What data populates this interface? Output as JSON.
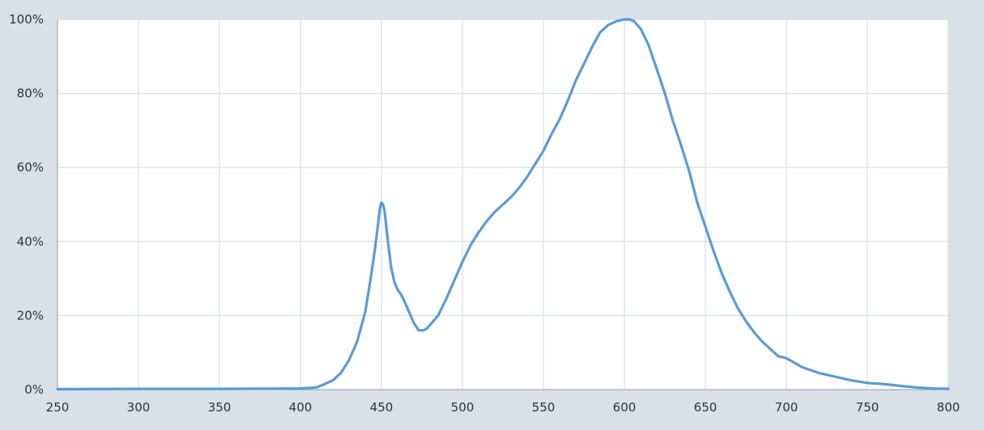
{
  "chart_data": {
    "type": "line",
    "title": "",
    "xlabel": "",
    "ylabel": "",
    "xlim": [
      250,
      800
    ],
    "ylim": [
      0,
      100
    ],
    "x_ticks": [
      250,
      300,
      350,
      400,
      450,
      500,
      550,
      600,
      650,
      700,
      750,
      800
    ],
    "x_tick_labels": [
      "250",
      "300",
      "350",
      "400",
      "450",
      "500",
      "550",
      "600",
      "650",
      "700",
      "750",
      "800"
    ],
    "y_ticks": [
      0,
      20,
      40,
      60,
      80,
      100
    ],
    "y_tick_labels": [
      "0%",
      "20%",
      "40%",
      "60%",
      "80%",
      "100%"
    ],
    "grid": true,
    "line_color": "#5b9bd5",
    "background_color": "#d9e0e8",
    "plot_background_color": "#ffffff",
    "series": [
      {
        "x": [
          250,
          300,
          350,
          400,
          410,
          415,
          420,
          425,
          430,
          435,
          440,
          443,
          446,
          448,
          449,
          450,
          451,
          452,
          454,
          456,
          458,
          460,
          463,
          466,
          470,
          473,
          476,
          478,
          480,
          485,
          490,
          495,
          500,
          505,
          510,
          515,
          520,
          525,
          530,
          535,
          540,
          545,
          550,
          555,
          560,
          565,
          570,
          575,
          580,
          585,
          590,
          595,
          600,
          603,
          606,
          610,
          615,
          620,
          625,
          630,
          635,
          640,
          645,
          650,
          655,
          660,
          665,
          670,
          675,
          680,
          685,
          690,
          695,
          700,
          710,
          720,
          730,
          740,
          750,
          760,
          770,
          780,
          790,
          800
        ],
        "y": [
          0.1,
          0.2,
          0.2,
          0.3,
          0.6,
          1.5,
          2.5,
          4.5,
          8,
          13,
          21,
          29,
          38,
          45,
          49,
          50.5,
          50,
          48,
          40,
          33,
          29,
          27,
          25,
          22,
          18,
          16,
          16,
          16.5,
          17.5,
          20,
          24.5,
          29.5,
          34.5,
          39,
          42.5,
          45.5,
          48,
          50,
          52,
          54.5,
          57.5,
          61,
          64.5,
          69,
          73,
          78,
          83.5,
          88,
          92.5,
          96.5,
          98.5,
          99.5,
          100,
          100,
          99.5,
          97.5,
          93,
          86.5,
          80,
          72.5,
          66,
          59,
          50.5,
          44,
          37.5,
          31.5,
          26.5,
          22,
          18.5,
          15.5,
          13,
          11,
          9,
          8.5,
          6,
          4.5,
          3.5,
          2.5,
          1.8,
          1.5,
          1,
          0.6,
          0.3,
          0.2
        ]
      }
    ]
  }
}
